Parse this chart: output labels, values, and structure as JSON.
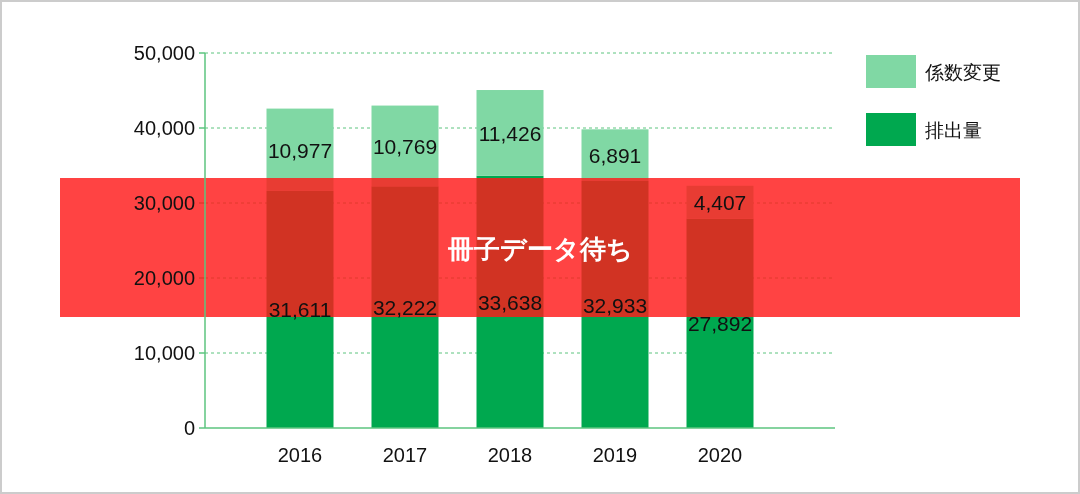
{
  "chart_data": {
    "type": "bar",
    "stacked": true,
    "categories": [
      "2016",
      "2017",
      "2018",
      "2019",
      "2020"
    ],
    "series": [
      {
        "name": "排出量",
        "color": "#00a84f",
        "values": [
          31611,
          32222,
          33638,
          32933,
          27892
        ],
        "value_labels": [
          "31,611",
          "32,222",
          "33,638",
          "32,933",
          "27,892"
        ]
      },
      {
        "name": "係数変更",
        "color": "#80d8a4",
        "values": [
          10977,
          10769,
          11426,
          6891,
          4407
        ],
        "value_labels": [
          "10,977",
          "10,769",
          "11,426",
          "6,891",
          "4,407"
        ]
      }
    ],
    "ylim": [
      0,
      50000
    ],
    "yticks": [
      {
        "value": 0,
        "label": "0"
      },
      {
        "value": 10000,
        "label": "10,000"
      },
      {
        "value": 20000,
        "label": "20,000"
      },
      {
        "value": 30000,
        "label": "30,000"
      },
      {
        "value": 40000,
        "label": "40,000"
      },
      {
        "value": 50000,
        "label": "50,000"
      }
    ],
    "grid": "y",
    "legend": "top right",
    "annotations": [
      "冊子データ待ち"
    ]
  }
}
